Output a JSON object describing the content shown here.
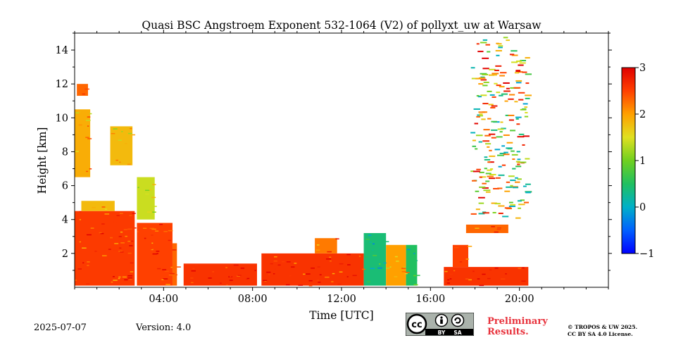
{
  "chart_data": {
    "type": "heatmap",
    "title": "Quasi BSC Angstroem Exponent 532-1064 (V2) of pollyxt_uw at Warsaw",
    "xlabel": "Time [UTC]",
    "ylabel": "Height [km]",
    "xlim_hours": [
      0,
      24
    ],
    "ylim_km": [
      0,
      15
    ],
    "x_ticks": [
      {
        "hour": 4,
        "label": "04:00"
      },
      {
        "hour": 8,
        "label": "08:00"
      },
      {
        "hour": 12,
        "label": "12:00"
      },
      {
        "hour": 16,
        "label": "16:00"
      },
      {
        "hour": 20,
        "label": "20:00"
      }
    ],
    "y_ticks": [
      {
        "value": 2,
        "label": "2"
      },
      {
        "value": 4,
        "label": "4"
      },
      {
        "value": 6,
        "label": "6"
      },
      {
        "value": 8,
        "label": "8"
      },
      {
        "value": 10,
        "label": "10"
      },
      {
        "value": 12,
        "label": "12"
      },
      {
        "value": 14,
        "label": "14"
      }
    ],
    "colorbar": {
      "range": [
        -1,
        3
      ],
      "ticks": [
        {
          "value": 3,
          "label": "3"
        },
        {
          "value": 2,
          "label": "2"
        },
        {
          "value": 1,
          "label": "1"
        },
        {
          "value": 0,
          "label": "0"
        },
        {
          "value": -1,
          "label": "−1"
        }
      ],
      "colormap": "jet"
    },
    "regions": [
      {
        "t0": 0.0,
        "t1": 2.7,
        "h0": 0.1,
        "h1": 4.5,
        "value": 2.55
      },
      {
        "t0": 2.8,
        "t1": 4.4,
        "h0": 0.1,
        "h1": 3.8,
        "value": 2.5
      },
      {
        "t0": 4.4,
        "t1": 4.6,
        "h0": 0.1,
        "h1": 2.6,
        "value": 2.3
      },
      {
        "t0": 0.0,
        "t1": 0.7,
        "h0": 6.5,
        "h1": 10.5,
        "value": 1.9
      },
      {
        "t0": 0.1,
        "t1": 0.6,
        "h0": 11.3,
        "h1": 12.0,
        "value": 2.3
      },
      {
        "t0": 1.6,
        "t1": 2.6,
        "h0": 7.2,
        "h1": 9.5,
        "value": 1.8
      },
      {
        "t0": 2.8,
        "t1": 3.6,
        "h0": 4.0,
        "h1": 6.5,
        "value": 1.4
      },
      {
        "t0": 0.3,
        "t1": 1.8,
        "h0": 4.5,
        "h1": 5.1,
        "value": 1.8
      },
      {
        "t0": 4.9,
        "t1": 8.2,
        "h0": 0.1,
        "h1": 1.4,
        "value": 2.6
      },
      {
        "t0": 8.4,
        "t1": 13.0,
        "h0": 0.1,
        "h1": 2.0,
        "value": 2.6
      },
      {
        "t0": 10.8,
        "t1": 11.8,
        "h0": 2.0,
        "h1": 2.9,
        "value": 2.2
      },
      {
        "t0": 13.0,
        "t1": 14.0,
        "h0": 0.1,
        "h1": 3.2,
        "value": 0.4
      },
      {
        "t0": 14.0,
        "t1": 14.9,
        "h0": 0.1,
        "h1": 2.5,
        "value": 2.0
      },
      {
        "t0": 14.9,
        "t1": 15.4,
        "h0": 0.1,
        "h1": 2.5,
        "value": 0.5
      },
      {
        "t0": 16.6,
        "t1": 20.4,
        "h0": 0.1,
        "h1": 1.2,
        "value": 2.6
      },
      {
        "t0": 17.0,
        "t1": 17.7,
        "h0": 1.2,
        "h1": 2.5,
        "value": 2.5
      },
      {
        "t0": 17.6,
        "t1": 19.5,
        "h0": 3.2,
        "h1": 3.7,
        "value": 2.3
      },
      {
        "t0": 17.8,
        "t1": 20.3,
        "h0": 4.0,
        "h1": 14.8,
        "value": 1.5
      }
    ]
  },
  "footer": {
    "date": "2025-07-07",
    "version": "Version: 4.0",
    "preliminary_line1": "Preliminary",
    "preliminary_line2": "Results.",
    "copyright_line1": "© TROPOS & UW 2025.",
    "copyright_line2": "CC BY SA 4.0 License.",
    "license_badge": {
      "cc": "cc",
      "by": "BY",
      "sa": "SA"
    }
  }
}
